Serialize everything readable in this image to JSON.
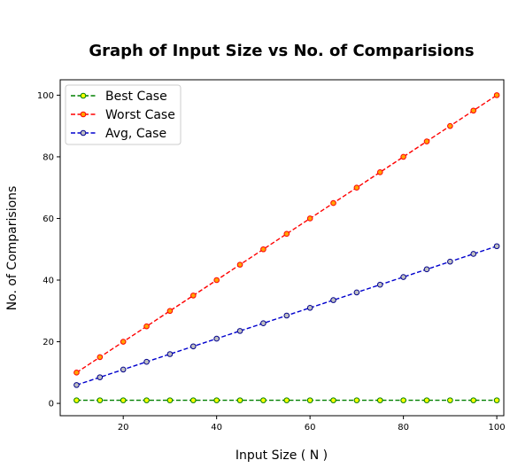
{
  "chart_data": {
    "type": "line",
    "title": "Graph of Input Size vs No. of Comparisions",
    "xlabel": "Input Size ( N )",
    "ylabel": "No. of Comparisions",
    "xlim": [
      6.5,
      101.5
    ],
    "ylim": [
      -4,
      105
    ],
    "xticks": [
      20,
      40,
      60,
      80,
      100
    ],
    "yticks": [
      0,
      20,
      40,
      60,
      80,
      100
    ],
    "grid": false,
    "legend_position": "top-left",
    "x": [
      10,
      15,
      20,
      25,
      30,
      35,
      40,
      45,
      50,
      55,
      60,
      65,
      70,
      75,
      80,
      85,
      90,
      95,
      100
    ],
    "series": [
      {
        "name": "Best Case",
        "line_color": "#008000",
        "marker_face": "#ffff00",
        "marker_edge": "#008000",
        "values": [
          1,
          1,
          1,
          1,
          1,
          1,
          1,
          1,
          1,
          1,
          1,
          1,
          1,
          1,
          1,
          1,
          1,
          1,
          1
        ]
      },
      {
        "name": "Worst Case",
        "line_color": "#ff0000",
        "marker_face": "#ffa500",
        "marker_edge": "#ff0000",
        "values": [
          10,
          15,
          20,
          25,
          30,
          35,
          40,
          45,
          50,
          55,
          60,
          65,
          70,
          75,
          80,
          85,
          90,
          95,
          100
        ]
      },
      {
        "name": " Avg, Case",
        "line_color": "#0000cd",
        "marker_face": "#c0c0c0",
        "marker_edge": "#00008b",
        "values": [
          5.96,
          8.47,
          10.98,
          13.49,
          15.99,
          18.5,
          21.0,
          23.5,
          26.0,
          28.5,
          31.0,
          33.5,
          36.0,
          38.5,
          41.0,
          43.5,
          46.0,
          48.5,
          51.0
        ]
      }
    ]
  }
}
